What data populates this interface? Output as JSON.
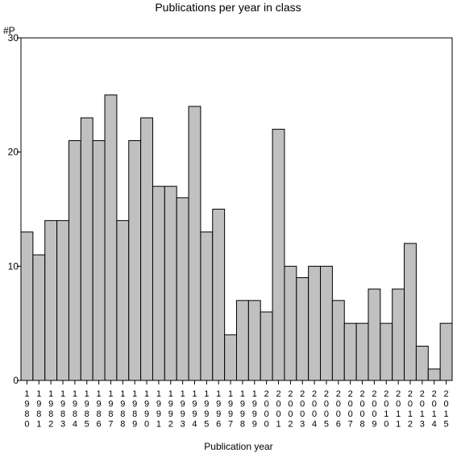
{
  "chart_data": {
    "type": "bar",
    "title": "Publications per year in class",
    "xlabel": "Publication year",
    "ylabel": "#P",
    "ylim": [
      0,
      30
    ],
    "yticks": [
      0,
      10,
      20,
      30
    ],
    "categories": [
      "1980",
      "1981",
      "1982",
      "1983",
      "1984",
      "1985",
      "1986",
      "1987",
      "1988",
      "1989",
      "1990",
      "1991",
      "1992",
      "1993",
      "1994",
      "1995",
      "1996",
      "1997",
      "1998",
      "1999",
      "2000",
      "2001",
      "2002",
      "2003",
      "2004",
      "2005",
      "2006",
      "2007",
      "2008",
      "2009",
      "2010",
      "2011",
      "2012",
      "2013",
      "2014",
      "2015"
    ],
    "values": [
      13,
      11,
      14,
      14,
      21,
      23,
      21,
      25,
      14,
      21,
      23,
      17,
      17,
      16,
      24,
      13,
      15,
      4,
      7,
      7,
      6,
      22,
      10,
      9,
      10,
      10,
      7,
      5,
      5,
      8,
      5,
      8,
      12,
      3,
      1,
      5
    ],
    "bar_color": "#c0c0c0",
    "grid": false,
    "legend": "none"
  }
}
